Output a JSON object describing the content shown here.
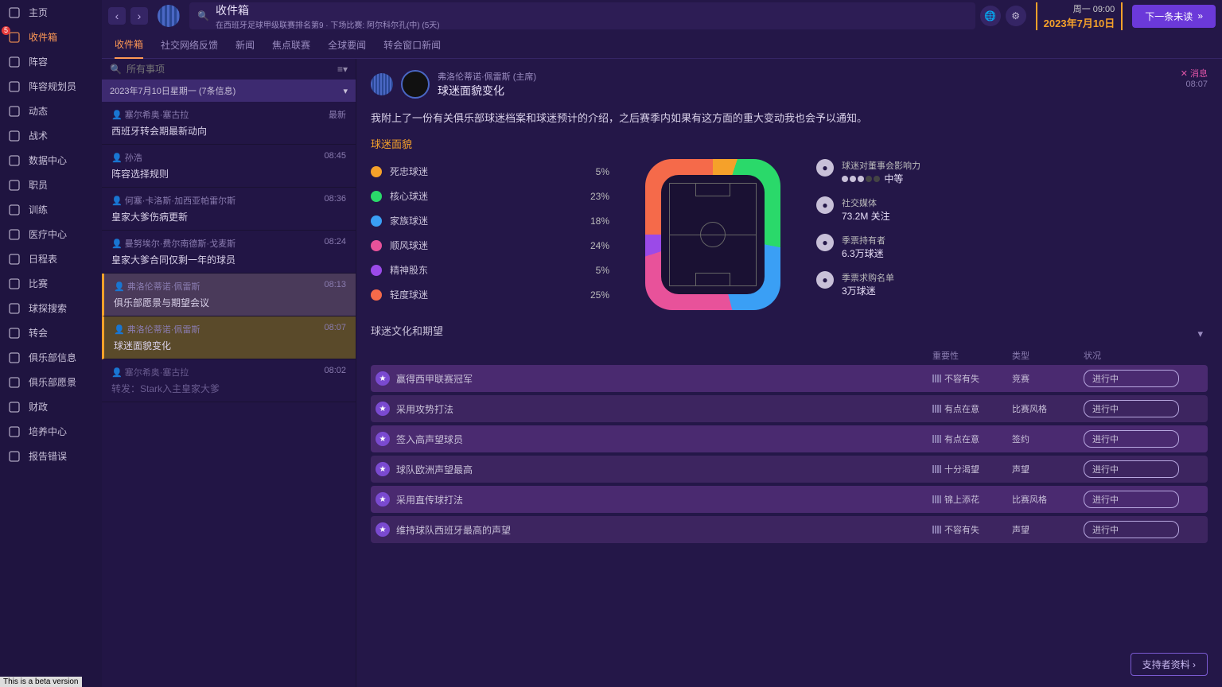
{
  "leftnav": [
    {
      "label": "主页",
      "icon": "home"
    },
    {
      "label": "收件箱",
      "icon": "inbox",
      "active": true,
      "badge": "5"
    },
    {
      "label": "阵容",
      "icon": "shirt"
    },
    {
      "label": "阵容规划员",
      "icon": "clipboard"
    },
    {
      "label": "动态",
      "icon": "pulse"
    },
    {
      "label": "战术",
      "icon": "tactics"
    },
    {
      "label": "数据中心",
      "icon": "data"
    },
    {
      "label": "职员",
      "icon": "staff"
    },
    {
      "label": "训练",
      "icon": "bell"
    },
    {
      "label": "医疗中心",
      "icon": "medkit"
    },
    {
      "label": "日程表",
      "icon": "calendar"
    },
    {
      "label": "比赛",
      "icon": "trophy"
    },
    {
      "label": "球探搜索",
      "icon": "search"
    },
    {
      "label": "转会",
      "icon": "transfer"
    },
    {
      "label": "俱乐部信息",
      "icon": "shield"
    },
    {
      "label": "俱乐部愿景",
      "icon": "vision"
    },
    {
      "label": "财政",
      "icon": "finance"
    },
    {
      "label": "培养中心",
      "icon": "dev"
    },
    {
      "label": "报告错误",
      "icon": "bug"
    }
  ],
  "top": {
    "title": "收件箱",
    "subtitle": "在西班牙足球甲级联赛排名第9 · 下场比赛: 阿尔科尔孔(中) (5天)",
    "day": "周一 09:00",
    "date": "2023年7月10日",
    "continue": "下一条未读"
  },
  "tabs": [
    "收件箱",
    "社交网络反馈",
    "新闻",
    "焦点联赛",
    "全球要闻",
    "转会窗口新闻"
  ],
  "filter_placeholder": "所有事项",
  "day_header": "2023年7月10日星期一 (7条信息)",
  "messages": [
    {
      "from": "塞尔希奥·塞古拉",
      "subj": "西班牙转会期最新动向",
      "time": "最新"
    },
    {
      "from": "孙浩",
      "subj": "阵容选择规则",
      "time": "08:45"
    },
    {
      "from": "何塞·卡洛斯·加西亚帕雷尔斯",
      "subj": "皇家大爹伤病更新",
      "time": "08:36"
    },
    {
      "from": "曼努埃尔·费尔南德斯·戈麦斯",
      "subj": "皇家大爹合同仅剩一年的球员",
      "time": "08:24"
    },
    {
      "from": "弗洛伦蒂诺·佩雷斯",
      "subj": "俱乐部愿景与期望会议",
      "time": "08:13",
      "prevsel": true
    },
    {
      "from": "弗洛伦蒂诺·佩雷斯",
      "subj": "球迷面貌变化",
      "time": "08:07",
      "sel": true
    },
    {
      "from": "塞尔希奥·塞古拉",
      "subj": "转发：Stark入主皇家大爹",
      "time": "08:02",
      "faded": true,
      "prefix": "转发："
    }
  ],
  "msg": {
    "sender": "弗洛伦蒂诺·佩雷斯 (主席)",
    "title": "球迷面貌变化",
    "dismiss": "消息",
    "time": "08:07",
    "body": "我附上了一份有关俱乐部球迷档案和球迷预计的介绍，之后赛季内如果有这方面的重大变动我也会予以通知。",
    "section1": "球迷面貌",
    "fans": [
      {
        "label": "死忠球迷",
        "pct": "5%",
        "color": "#f5a12a"
      },
      {
        "label": "核心球迷",
        "pct": "23%",
        "color": "#2ad96a"
      },
      {
        "label": "家族球迷",
        "pct": "18%",
        "color": "#3a9ff5"
      },
      {
        "label": "顺风球迷",
        "pct": "24%",
        "color": "#e8529a"
      },
      {
        "label": "精神股东",
        "pct": "5%",
        "color": "#9b4ae8"
      },
      {
        "label": "轻度球迷",
        "pct": "25%",
        "color": "#f56a4a"
      }
    ],
    "stats": [
      {
        "l1": "球迷对董事会影响力",
        "l2": "中等",
        "dots": 3
      },
      {
        "l1": "社交媒体",
        "l2": "73.2M 关注"
      },
      {
        "l1": "季票持有者",
        "l2": "6.3万球迷"
      },
      {
        "l1": "季票求购名单",
        "l2": "3万球迷"
      }
    ],
    "section2": "球迷文化和期望",
    "cols": {
      "c1": "",
      "c2": "重要性",
      "c3": "类型",
      "c4": "状况"
    },
    "rows": [
      {
        "t": "赢得西甲联赛冠军",
        "imp": "不容有失",
        "type": "竞赛",
        "st": "进行中"
      },
      {
        "t": "采用攻势打法",
        "imp": "有点在意",
        "type": "比赛风格",
        "st": "进行中"
      },
      {
        "t": "签入高声望球员",
        "imp": "有点在意",
        "type": "签约",
        "st": "进行中"
      },
      {
        "t": "球队欧洲声望最高",
        "imp": "十分渴望",
        "type": "声望",
        "st": "进行中"
      },
      {
        "t": "采用直传球打法",
        "imp": "锦上添花",
        "type": "比赛风格",
        "st": "进行中"
      },
      {
        "t": "维持球队西班牙最高的声望",
        "imp": "不容有失",
        "type": "声望",
        "st": "进行中"
      }
    ],
    "footer": "支持者资料"
  },
  "beta": "This is a beta version"
}
